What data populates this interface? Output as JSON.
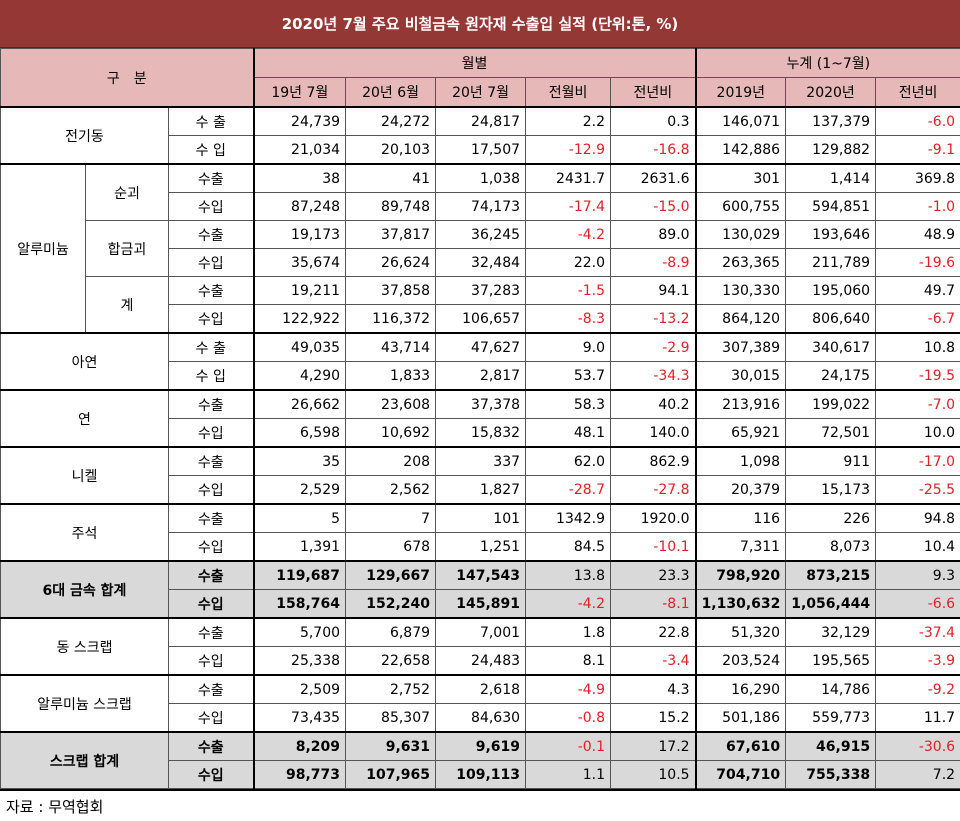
{
  "title": "2020년 7월 주요 비철금속 원자재 수출입 실적 (단위:톤, %)",
  "header": {
    "category": "구　분",
    "monthly": "월별",
    "cumulative": "누계 (1~7월)",
    "columns": [
      "19년 7월",
      "20년 6월",
      "20년 7월",
      "전월비",
      "전년비",
      "2019년",
      "2020년",
      "전년비"
    ]
  },
  "groups": [
    {
      "label": "전기동",
      "rows": [
        {
          "type": "수 출",
          "values": [
            "24,739",
            "24,272",
            "24,817",
            "2.2",
            "0.3",
            "146,071",
            "137,379",
            "-6.0"
          ]
        },
        {
          "type": "수 입",
          "values": [
            "21,034",
            "20,103",
            "17,507",
            "-12.9",
            "-16.8",
            "142,886",
            "129,882",
            "-9.1"
          ]
        }
      ]
    },
    {
      "label": "알루미늄",
      "subs": [
        {
          "label": "순괴",
          "rows": [
            {
              "type": "수출",
              "values": [
                "38",
                "41",
                "1,038",
                "2431.7",
                "2631.6",
                "301",
                "1,414",
                "369.8"
              ]
            },
            {
              "type": "수입",
              "values": [
                "87,248",
                "89,748",
                "74,173",
                "-17.4",
                "-15.0",
                "600,755",
                "594,851",
                "-1.0"
              ]
            }
          ]
        },
        {
          "label": "합금괴",
          "rows": [
            {
              "type": "수출",
              "values": [
                "19,173",
                "37,817",
                "36,245",
                "-4.2",
                "89.0",
                "130,029",
                "193,646",
                "48.9"
              ]
            },
            {
              "type": "수입",
              "values": [
                "35,674",
                "26,624",
                "32,484",
                "22.0",
                "-8.9",
                "263,365",
                "211,789",
                "-19.6"
              ]
            }
          ]
        },
        {
          "label": "계",
          "rows": [
            {
              "type": "수출",
              "values": [
                "19,211",
                "37,858",
                "37,283",
                "-1.5",
                "94.1",
                "130,330",
                "195,060",
                "49.7"
              ]
            },
            {
              "type": "수입",
              "values": [
                "122,922",
                "116,372",
                "106,657",
                "-8.3",
                "-13.2",
                "864,120",
                "806,640",
                "-6.7"
              ]
            }
          ]
        }
      ]
    },
    {
      "label": "아연",
      "rows": [
        {
          "type": "수 출",
          "values": [
            "49,035",
            "43,714",
            "47,627",
            "9.0",
            "-2.9",
            "307,389",
            "340,617",
            "10.8"
          ]
        },
        {
          "type": "수 입",
          "values": [
            "4,290",
            "1,833",
            "2,817",
            "53.7",
            "-34.3",
            "30,015",
            "24,175",
            "-19.5"
          ]
        }
      ]
    },
    {
      "label": "연",
      "rows": [
        {
          "type": "수출",
          "values": [
            "26,662",
            "23,608",
            "37,378",
            "58.3",
            "40.2",
            "213,916",
            "199,022",
            "-7.0"
          ]
        },
        {
          "type": "수입",
          "values": [
            "6,598",
            "10,692",
            "15,832",
            "48.1",
            "140.0",
            "65,921",
            "72,501",
            "10.0"
          ]
        }
      ]
    },
    {
      "label": "니켈",
      "rows": [
        {
          "type": "수출",
          "values": [
            "35",
            "208",
            "337",
            "62.0",
            "862.9",
            "1,098",
            "911",
            "-17.0"
          ]
        },
        {
          "type": "수입",
          "values": [
            "2,529",
            "2,562",
            "1,827",
            "-28.7",
            "-27.8",
            "20,379",
            "15,173",
            "-25.5"
          ]
        }
      ]
    },
    {
      "label": "주석",
      "rows": [
        {
          "type": "수출",
          "values": [
            "5",
            "7",
            "101",
            "1342.9",
            "1920.0",
            "116",
            "226",
            "94.8"
          ]
        },
        {
          "type": "수입",
          "values": [
            "1,391",
            "678",
            "1,251",
            "84.5",
            "-10.1",
            "7,311",
            "8,073",
            "10.4"
          ]
        }
      ]
    },
    {
      "label": "6대 금속 합계",
      "total": true,
      "rows": [
        {
          "type": "수출",
          "values": [
            "119,687",
            "129,667",
            "147,543",
            "13.8",
            "23.3",
            "798,920",
            "873,215",
            "9.3"
          ]
        },
        {
          "type": "수입",
          "values": [
            "158,764",
            "152,240",
            "145,891",
            "-4.2",
            "-8.1",
            "1,130,632",
            "1,056,444",
            "-6.6"
          ]
        }
      ]
    },
    {
      "label": "동 스크랩",
      "rows": [
        {
          "type": "수출",
          "values": [
            "5,700",
            "6,879",
            "7,001",
            "1.8",
            "22.8",
            "51,320",
            "32,129",
            "-37.4"
          ]
        },
        {
          "type": "수입",
          "values": [
            "25,338",
            "22,658",
            "24,483",
            "8.1",
            "-3.4",
            "203,524",
            "195,565",
            "-3.9"
          ]
        }
      ]
    },
    {
      "label": "알루미늄 스크랩",
      "rows": [
        {
          "type": "수출",
          "values": [
            "2,509",
            "2,752",
            "2,618",
            "-4.9",
            "4.3",
            "16,290",
            "14,786",
            "-9.2"
          ]
        },
        {
          "type": "수입",
          "values": [
            "73,435",
            "85,307",
            "84,630",
            "-0.8",
            "15.2",
            "501,186",
            "559,773",
            "11.7"
          ]
        }
      ]
    },
    {
      "label": "스크랩 합계",
      "total": true,
      "rows": [
        {
          "type": "수출",
          "values": [
            "8,209",
            "9,631",
            "9,619",
            "-0.1",
            "17.2",
            "67,610",
            "46,915",
            "-30.6"
          ]
        },
        {
          "type": "수입",
          "values": [
            "98,773",
            "107,965",
            "109,113",
            "1.1",
            "10.5",
            "704,710",
            "755,338",
            "7.2"
          ]
        }
      ]
    }
  ],
  "source": "자료 : 무역협회"
}
